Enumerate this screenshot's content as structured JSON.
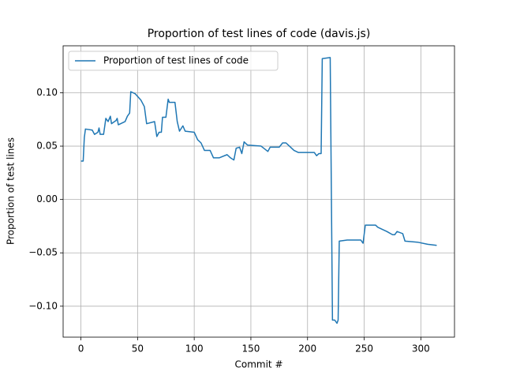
{
  "chart_data": {
    "type": "line",
    "title": "Proportion of test lines of code (davis.js)",
    "x_label": "Commit #",
    "y_label": "Proportion of test lines",
    "x": [
      0,
      2,
      3,
      4,
      10,
      12,
      15,
      16,
      17,
      20,
      22,
      24,
      26,
      27,
      31,
      32,
      33,
      35,
      39,
      41,
      43,
      44,
      48,
      53,
      56,
      58,
      65,
      67,
      69,
      71,
      72,
      75,
      77,
      78,
      83,
      85,
      87,
      90,
      92,
      100,
      103,
      106,
      109,
      114,
      117,
      122,
      129,
      132,
      135,
      137,
      140,
      142,
      144,
      147,
      159,
      165,
      167,
      175,
      178,
      181,
      183,
      188,
      192,
      206,
      208,
      210,
      212,
      213,
      220,
      222,
      224,
      226,
      227,
      228,
      235,
      247,
      249,
      251,
      260,
      262,
      270,
      275,
      277,
      279,
      284,
      286,
      297,
      306,
      314
    ],
    "series": [
      {
        "name": "Proportion of test lines of code",
        "color": "#1f77b4",
        "values": [
          0.036,
          0.036,
          0.058,
          0.066,
          0.065,
          0.061,
          0.063,
          0.067,
          0.061,
          0.061,
          0.076,
          0.073,
          0.078,
          0.071,
          0.074,
          0.076,
          0.07,
          0.071,
          0.073,
          0.078,
          0.081,
          0.101,
          0.099,
          0.093,
          0.087,
          0.071,
          0.073,
          0.059,
          0.063,
          0.063,
          0.077,
          0.077,
          0.094,
          0.091,
          0.091,
          0.073,
          0.064,
          0.069,
          0.064,
          0.063,
          0.056,
          0.053,
          0.046,
          0.046,
          0.039,
          0.039,
          0.042,
          0.039,
          0.037,
          0.048,
          0.049,
          0.043,
          0.054,
          0.051,
          0.05,
          0.045,
          0.049,
          0.049,
          0.053,
          0.053,
          0.051,
          0.046,
          0.044,
          0.044,
          0.041,
          0.043,
          0.043,
          0.132,
          0.133,
          -0.113,
          -0.113,
          -0.116,
          -0.113,
          -0.039,
          -0.038,
          -0.038,
          -0.041,
          -0.024,
          -0.024,
          -0.026,
          -0.03,
          -0.033,
          -0.033,
          -0.03,
          -0.032,
          -0.039,
          -0.04,
          -0.042,
          -0.043
        ]
      }
    ],
    "xlim": [
      -15.7,
      329.7
    ],
    "ylim": [
      -0.129,
      0.144
    ],
    "xticks": [
      0,
      50,
      100,
      150,
      200,
      250,
      300
    ],
    "yticks": [
      {
        "value": -0.1,
        "label": "−0.10"
      },
      {
        "value": -0.05,
        "label": "−0.05"
      },
      {
        "value": 0,
        "label": "0.00"
      },
      {
        "value": 0.05,
        "label": "0.05"
      },
      {
        "value": 0.1,
        "label": "0.10"
      }
    ],
    "grid": true,
    "legend": "upper left"
  }
}
